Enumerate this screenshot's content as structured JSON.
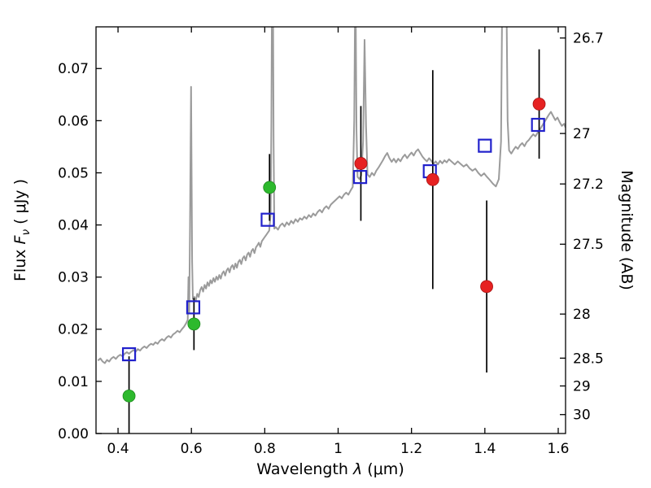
{
  "figure": {
    "background": "#ffffff",
    "frame_color": "#000000",
    "errorbar_color": "#000000"
  },
  "labels": {
    "xlabel": {
      "pre": "Wavelength  ",
      "lambda": "λ",
      "post": " (μm)"
    },
    "ylabel_left": {
      "pre": "Flux  ",
      "symbol": "F",
      "sub": "ν",
      "post": " ( μJy )"
    },
    "ylabel_right": "Magnitude (AB)"
  },
  "chart_data": {
    "type": "line+scatter",
    "title": "",
    "xlabel": "Wavelength λ (μm)",
    "ylabel_left": "Flux Fν ( μJy )",
    "ylabel_right": "Magnitude (AB)",
    "xlim": [
      0.34,
      1.62
    ],
    "ylim": [
      0.0,
      0.078
    ],
    "grid": false,
    "legend": "none",
    "x_ticks": [
      0.4,
      0.6,
      0.8,
      1.0,
      1.2,
      1.4,
      1.6
    ],
    "x_tick_labels": [
      "0.4",
      "0.6",
      "0.8",
      "1",
      "1.2",
      "1.4",
      "1.6"
    ],
    "y_ticks_left": [
      0.0,
      0.01,
      0.02,
      0.03,
      0.04,
      0.05,
      0.06,
      0.07
    ],
    "y_tick_labels_left": [
      "0.00",
      "0.01",
      "0.02",
      "0.03",
      "0.04",
      "0.05",
      "0.06",
      "0.07"
    ],
    "y_ticks_right_mag": [
      26.7,
      27,
      27.2,
      27.5,
      28,
      28.5,
      29,
      30
    ],
    "y_tick_labels_right": [
      "26.7",
      "27",
      "27.2",
      "27.5",
      "28",
      "28.5",
      "29",
      "30"
    ],
    "ab_zeropoint_ujy": 23.9,
    "series": [
      {
        "name": "model-spectrum",
        "type": "line",
        "color": "#9b9b9b",
        "width": 2,
        "points": [
          [
            0.345,
            0.014
          ],
          [
            0.352,
            0.0144
          ],
          [
            0.358,
            0.0138
          ],
          [
            0.364,
            0.0135
          ],
          [
            0.37,
            0.0141
          ],
          [
            0.376,
            0.0138
          ],
          [
            0.382,
            0.0144
          ],
          [
            0.388,
            0.0147
          ],
          [
            0.394,
            0.0143
          ],
          [
            0.4,
            0.0148
          ],
          [
            0.406,
            0.0151
          ],
          [
            0.412,
            0.0148
          ],
          [
            0.418,
            0.0153
          ],
          [
            0.424,
            0.0156
          ],
          [
            0.43,
            0.0153
          ],
          [
            0.436,
            0.0157
          ],
          [
            0.442,
            0.016
          ],
          [
            0.448,
            0.0157
          ],
          [
            0.454,
            0.0162
          ],
          [
            0.46,
            0.0159
          ],
          [
            0.466,
            0.0164
          ],
          [
            0.472,
            0.0167
          ],
          [
            0.478,
            0.0164
          ],
          [
            0.484,
            0.0169
          ],
          [
            0.49,
            0.0172
          ],
          [
            0.496,
            0.017
          ],
          [
            0.502,
            0.0175
          ],
          [
            0.508,
            0.0172
          ],
          [
            0.514,
            0.0178
          ],
          [
            0.52,
            0.0181
          ],
          [
            0.526,
            0.0178
          ],
          [
            0.532,
            0.0184
          ],
          [
            0.538,
            0.0187
          ],
          [
            0.544,
            0.0184
          ],
          [
            0.55,
            0.019
          ],
          [
            0.556,
            0.0193
          ],
          [
            0.562,
            0.0197
          ],
          [
            0.568,
            0.0194
          ],
          [
            0.574,
            0.02
          ],
          [
            0.58,
            0.0205
          ],
          [
            0.586,
            0.0212
          ],
          [
            0.59,
            0.0218
          ],
          [
            0.592,
            0.03
          ],
          [
            0.594,
            0.0232
          ],
          [
            0.596,
            0.038
          ],
          [
            0.599,
            0.0665
          ],
          [
            0.602,
            0.033
          ],
          [
            0.604,
            0.0258
          ],
          [
            0.608,
            0.0262
          ],
          [
            0.612,
            0.0255
          ],
          [
            0.616,
            0.0268
          ],
          [
            0.62,
            0.0262
          ],
          [
            0.624,
            0.0275
          ],
          [
            0.628,
            0.0281
          ],
          [
            0.632,
            0.0272
          ],
          [
            0.636,
            0.0285
          ],
          [
            0.64,
            0.0278
          ],
          [
            0.644,
            0.029
          ],
          [
            0.648,
            0.0283
          ],
          [
            0.652,
            0.0294
          ],
          [
            0.656,
            0.0288
          ],
          [
            0.66,
            0.0298
          ],
          [
            0.664,
            0.0291
          ],
          [
            0.668,
            0.0301
          ],
          [
            0.672,
            0.0295
          ],
          [
            0.676,
            0.0304
          ],
          [
            0.68,
            0.0297
          ],
          [
            0.684,
            0.0307
          ],
          [
            0.688,
            0.0311
          ],
          [
            0.692,
            0.0303
          ],
          [
            0.696,
            0.0313
          ],
          [
            0.7,
            0.0317
          ],
          [
            0.704,
            0.0309
          ],
          [
            0.708,
            0.0319
          ],
          [
            0.712,
            0.0323
          ],
          [
            0.716,
            0.0315
          ],
          [
            0.72,
            0.0326
          ],
          [
            0.724,
            0.0318
          ],
          [
            0.728,
            0.0329
          ],
          [
            0.732,
            0.0333
          ],
          [
            0.736,
            0.0325
          ],
          [
            0.74,
            0.0336
          ],
          [
            0.744,
            0.034
          ],
          [
            0.748,
            0.0332
          ],
          [
            0.752,
            0.0343
          ],
          [
            0.756,
            0.0347
          ],
          [
            0.76,
            0.0339
          ],
          [
            0.764,
            0.035
          ],
          [
            0.768,
            0.0354
          ],
          [
            0.772,
            0.0346
          ],
          [
            0.776,
            0.0357
          ],
          [
            0.78,
            0.0361
          ],
          [
            0.784,
            0.0366
          ],
          [
            0.788,
            0.0358
          ],
          [
            0.792,
            0.0369
          ],
          [
            0.796,
            0.0373
          ],
          [
            0.8,
            0.0377
          ],
          [
            0.804,
            0.0381
          ],
          [
            0.808,
            0.0385
          ],
          [
            0.812,
            0.0389
          ],
          [
            0.816,
            0.042
          ],
          [
            0.818,
            0.06
          ],
          [
            0.82,
            0.09
          ],
          [
            0.822,
            0.09
          ],
          [
            0.824,
            0.056
          ],
          [
            0.826,
            0.0393
          ],
          [
            0.83,
            0.0396
          ],
          [
            0.836,
            0.0391
          ],
          [
            0.842,
            0.0399
          ],
          [
            0.848,
            0.0403
          ],
          [
            0.854,
            0.0397
          ],
          [
            0.86,
            0.0405
          ],
          [
            0.866,
            0.04
          ],
          [
            0.872,
            0.0408
          ],
          [
            0.878,
            0.0403
          ],
          [
            0.884,
            0.0411
          ],
          [
            0.89,
            0.0406
          ],
          [
            0.896,
            0.0413
          ],
          [
            0.902,
            0.041
          ],
          [
            0.908,
            0.0416
          ],
          [
            0.914,
            0.0412
          ],
          [
            0.92,
            0.0419
          ],
          [
            0.926,
            0.0415
          ],
          [
            0.932,
            0.0422
          ],
          [
            0.938,
            0.0418
          ],
          [
            0.944,
            0.0425
          ],
          [
            0.95,
            0.0429
          ],
          [
            0.956,
            0.0424
          ],
          [
            0.962,
            0.0432
          ],
          [
            0.968,
            0.0436
          ],
          [
            0.974,
            0.0431
          ],
          [
            0.98,
            0.0439
          ],
          [
            0.986,
            0.0443
          ],
          [
            0.992,
            0.0447
          ],
          [
            0.998,
            0.0451
          ],
          [
            1.004,
            0.0455
          ],
          [
            1.01,
            0.0451
          ],
          [
            1.016,
            0.0458
          ],
          [
            1.022,
            0.0462
          ],
          [
            1.028,
            0.0458
          ],
          [
            1.034,
            0.0466
          ],
          [
            1.04,
            0.0473
          ],
          [
            1.044,
            0.06
          ],
          [
            1.047,
            0.09
          ],
          [
            1.05,
            0.058
          ],
          [
            1.053,
            0.0492
          ],
          [
            1.058,
            0.0488
          ],
          [
            1.063,
            0.0495
          ],
          [
            1.068,
            0.056
          ],
          [
            1.072,
            0.0755
          ],
          [
            1.076,
            0.059
          ],
          [
            1.08,
            0.0497
          ],
          [
            1.086,
            0.0492
          ],
          [
            1.092,
            0.05
          ],
          [
            1.098,
            0.0495
          ],
          [
            1.104,
            0.0504
          ],
          [
            1.11,
            0.051
          ],
          [
            1.116,
            0.0517
          ],
          [
            1.122,
            0.0524
          ],
          [
            1.128,
            0.0532
          ],
          [
            1.134,
            0.0538
          ],
          [
            1.14,
            0.0528
          ],
          [
            1.146,
            0.0521
          ],
          [
            1.152,
            0.0527
          ],
          [
            1.158,
            0.052
          ],
          [
            1.164,
            0.0527
          ],
          [
            1.17,
            0.0522
          ],
          [
            1.176,
            0.053
          ],
          [
            1.182,
            0.0535
          ],
          [
            1.188,
            0.0528
          ],
          [
            1.194,
            0.0534
          ],
          [
            1.2,
            0.0539
          ],
          [
            1.206,
            0.0533
          ],
          [
            1.212,
            0.0541
          ],
          [
            1.218,
            0.0545
          ],
          [
            1.224,
            0.0538
          ],
          [
            1.23,
            0.0531
          ],
          [
            1.236,
            0.0526
          ],
          [
            1.242,
            0.0522
          ],
          [
            1.248,
            0.0528
          ],
          [
            1.254,
            0.0523
          ],
          [
            1.26,
            0.0517
          ],
          [
            1.266,
            0.0522
          ],
          [
            1.272,
            0.0516
          ],
          [
            1.278,
            0.0523
          ],
          [
            1.284,
            0.0518
          ],
          [
            1.29,
            0.0524
          ],
          [
            1.296,
            0.052
          ],
          [
            1.302,
            0.0526
          ],
          [
            1.31,
            0.0521
          ],
          [
            1.318,
            0.0516
          ],
          [
            1.326,
            0.0522
          ],
          [
            1.334,
            0.0517
          ],
          [
            1.342,
            0.0512
          ],
          [
            1.35,
            0.0516
          ],
          [
            1.358,
            0.0509
          ],
          [
            1.366,
            0.0504
          ],
          [
            1.374,
            0.0508
          ],
          [
            1.382,
            0.05
          ],
          [
            1.39,
            0.0494
          ],
          [
            1.398,
            0.0499
          ],
          [
            1.406,
            0.0492
          ],
          [
            1.414,
            0.0486
          ],
          [
            1.422,
            0.0479
          ],
          [
            1.43,
            0.0474
          ],
          [
            1.438,
            0.0488
          ],
          [
            1.444,
            0.056
          ],
          [
            1.448,
            0.09
          ],
          [
            1.458,
            0.09
          ],
          [
            1.462,
            0.06
          ],
          [
            1.466,
            0.0543
          ],
          [
            1.472,
            0.0537
          ],
          [
            1.478,
            0.0544
          ],
          [
            1.484,
            0.055
          ],
          [
            1.49,
            0.0546
          ],
          [
            1.496,
            0.0553
          ],
          [
            1.502,
            0.0557
          ],
          [
            1.508,
            0.0551
          ],
          [
            1.514,
            0.0559
          ],
          [
            1.52,
            0.0563
          ],
          [
            1.526,
            0.0569
          ],
          [
            1.532,
            0.0574
          ],
          [
            1.538,
            0.057
          ],
          [
            1.544,
            0.0577
          ],
          [
            1.55,
            0.0583
          ],
          [
            1.556,
            0.059
          ],
          [
            1.562,
            0.0597
          ],
          [
            1.568,
            0.0604
          ],
          [
            1.574,
            0.0611
          ],
          [
            1.58,
            0.0617
          ],
          [
            1.586,
            0.0609
          ],
          [
            1.592,
            0.0601
          ],
          [
            1.598,
            0.0606
          ],
          [
            1.604,
            0.0597
          ],
          [
            1.61,
            0.059
          ],
          [
            1.616,
            0.0594
          ],
          [
            1.62,
            0.0587
          ]
        ]
      },
      {
        "name": "model-photometry-squares",
        "type": "scatter",
        "marker": "open-square",
        "color": "#2222cc",
        "points": [
          [
            0.43,
            0.0152
          ],
          [
            0.605,
            0.0242
          ],
          [
            0.808,
            0.041
          ],
          [
            1.06,
            0.0492
          ],
          [
            1.25,
            0.0503
          ],
          [
            1.4,
            0.0552
          ],
          [
            1.545,
            0.0592
          ]
        ]
      },
      {
        "name": "observed-photometry-optical-green",
        "type": "scatter",
        "marker": "circle",
        "color": "#2db92d",
        "edge_color": "#1d8a1d",
        "points": [
          [
            0.43,
            0.0072
          ],
          [
            0.607,
            0.021
          ],
          [
            0.813,
            0.0472
          ]
        ],
        "yerr": [
          0.0076,
          0.005,
          0.0064
        ]
      },
      {
        "name": "observed-photometry-infrared-red",
        "type": "scatter",
        "marker": "circle",
        "color": "#e62222",
        "edge_color": "#a81515",
        "points": [
          [
            1.062,
            0.0518
          ],
          [
            1.258,
            0.0487
          ],
          [
            1.405,
            0.0282
          ],
          [
            1.548,
            0.0632
          ]
        ],
        "yerr": [
          0.011,
          0.021,
          0.0165,
          0.0105
        ]
      }
    ]
  }
}
